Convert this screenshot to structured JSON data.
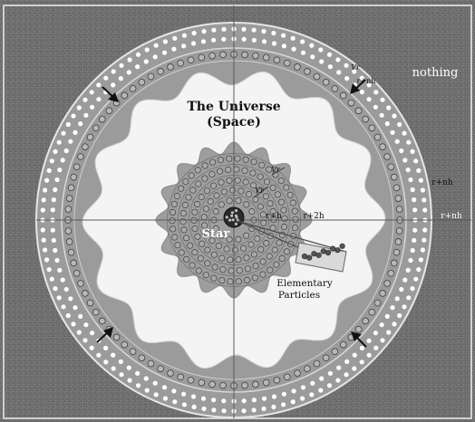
{
  "labels": {
    "universe_line1": "The Universe",
    "universe_line2": "(Space)",
    "star": "Star",
    "particles_line1": "Elementary",
    "particles_line2": "Particles",
    "nothing": "nothing",
    "r_plus_h": "r+h",
    "r_plus_2h": "r+2h",
    "r_plus_nh_small": "r+nh",
    "r_plus_nh_outer": "r+nh",
    "r_plus_nh_right": "r+nh",
    "v_r_inner": "Vr",
    "v_r_small": "Vr",
    "v_r_outer": "Vr"
  },
  "colors": {
    "background": "#6f6f6f",
    "outer_ring": "#9b9b9b",
    "universe_space": "#f4f4f4",
    "star_region": "#9e9e9e",
    "core": "#2a2a2a",
    "circle_stroke": "#4a4a4a",
    "dot_white": "#ffffff",
    "axis": "#5a5a5a",
    "text_light": "#ffffff",
    "text_dark": "#111111"
  },
  "icons": {
    "arrows": "arrow-inward-icon",
    "particles": "particle-cluster-icon"
  }
}
